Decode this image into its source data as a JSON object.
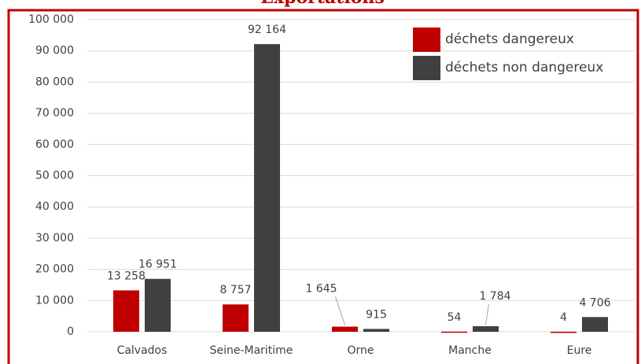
{
  "chart_data": {
    "type": "bar",
    "title": "Exportations",
    "categories": [
      "Calvados",
      "Seine-Maritime",
      "Orne",
      "Manche",
      "Eure"
    ],
    "series": [
      {
        "name": "déchets dangereux",
        "color": "#c00000",
        "values": [
          13258,
          8757,
          1645,
          54,
          4
        ],
        "value_labels": [
          "13 258",
          "8 757",
          "1 645",
          "54",
          "4"
        ]
      },
      {
        "name": "déchets non dangereux",
        "color": "#404040",
        "values": [
          16951,
          92164,
          915,
          1784,
          4706
        ],
        "value_labels": [
          "16 951",
          "92 164",
          "915",
          "1 784",
          "4 706"
        ]
      }
    ],
    "ylim": [
      0,
      100000
    ],
    "yticks": [
      0,
      {
        "value": 10000,
        "label": "10 000"
      },
      {
        "value": 20000,
        "label": "20 000"
      },
      {
        "value": 30000,
        "label": "30 000"
      },
      {
        "value": 40000,
        "label": "40 000"
      },
      {
        "value": 50000,
        "label": "50 000"
      },
      {
        "value": 60000,
        "label": "60 000"
      },
      {
        "value": 70000,
        "label": "70 000"
      },
      {
        "value": 80000,
        "label": "80 000"
      },
      {
        "value": 90000,
        "label": "90 000"
      },
      {
        "value": 100000,
        "label": "100 000"
      }
    ],
    "grid": true,
    "legend": "upper right"
  }
}
